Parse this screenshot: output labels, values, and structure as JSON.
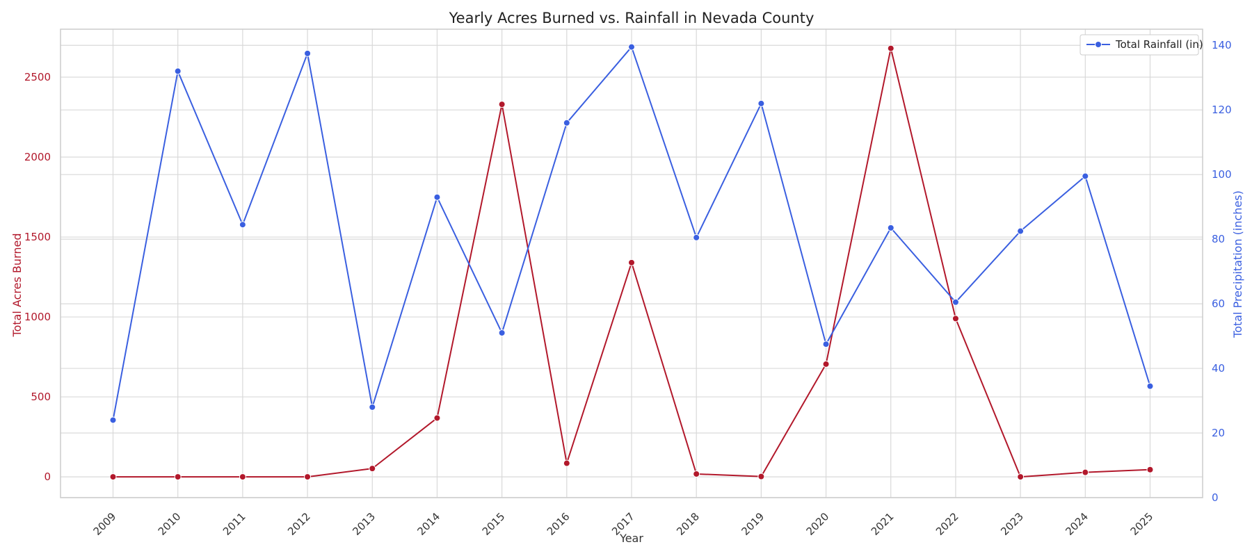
{
  "chart_data": {
    "type": "line",
    "title": "Yearly Acres Burned vs. Rainfall in Nevada County",
    "xlabel": "Year",
    "ylabel_left": "Total Acres Burned",
    "ylabel_right": "Total Precipitation (inches)",
    "x": [
      "2009",
      "2010",
      "2011",
      "2012",
      "2013",
      "2014",
      "2015",
      "2016",
      "2017",
      "2018",
      "2019",
      "2020",
      "2021",
      "2022",
      "2023",
      "2024",
      "2025"
    ],
    "ylim_left": [
      -130,
      2800
    ],
    "yticks_left": [
      0,
      500,
      1000,
      1500,
      2000,
      2500
    ],
    "ylim_right": [
      0,
      145
    ],
    "yticks_right": [
      0,
      20,
      40,
      60,
      80,
      100,
      120,
      140
    ],
    "grid": true,
    "legend_position": "top-right",
    "series": [
      {
        "axis": "left",
        "color": "#b2182b",
        "values": [
          0,
          0,
          0,
          0,
          52,
          368,
          2330,
          85,
          1340,
          18,
          2,
          705,
          2680,
          990,
          0,
          28,
          45
        ]
      },
      {
        "name": "Total Rainfall (in)",
        "axis": "right",
        "color": "#3a5fe0",
        "values": [
          24,
          132,
          84.5,
          137.5,
          28,
          93,
          51,
          116,
          139.5,
          80.5,
          122,
          47.5,
          83.5,
          60.5,
          82.5,
          99.5,
          34.5
        ]
      }
    ]
  }
}
